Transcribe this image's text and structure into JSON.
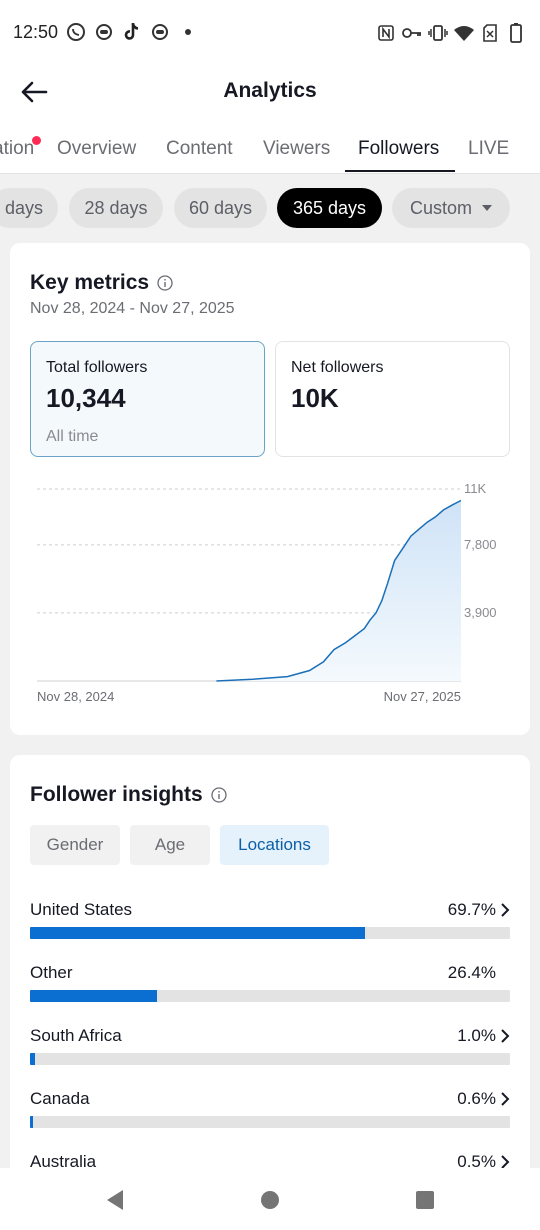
{
  "status_bar": {
    "time": "12:50"
  },
  "header": {
    "title": "Analytics"
  },
  "tabs": [
    {
      "label": "ation",
      "active": false
    },
    {
      "label": "Overview",
      "active": false
    },
    {
      "label": "Content",
      "active": false
    },
    {
      "label": "Viewers",
      "active": false
    },
    {
      "label": "Followers",
      "active": true
    },
    {
      "label": "LIVE",
      "active": false
    }
  ],
  "date_chips": [
    {
      "label": "days",
      "active": false
    },
    {
      "label": "28 days",
      "active": false
    },
    {
      "label": "60 days",
      "active": false
    },
    {
      "label": "365 days",
      "active": true
    },
    {
      "label": "Custom",
      "active": false
    }
  ],
  "key_metrics": {
    "title": "Key metrics",
    "date_range": "Nov 28, 2024 - Nov 27, 2025",
    "total": {
      "label": "Total followers",
      "value": "10,344",
      "sub": "All time"
    },
    "net": {
      "label": "Net followers",
      "value": "10K"
    }
  },
  "chart_data": {
    "type": "area",
    "title": "",
    "xlabel": "",
    "ylabel": "",
    "x_tick_labels": [
      "Nov 28, 2024",
      "Nov 27, 2025"
    ],
    "y_tick_labels": [
      "3,900",
      "7,800",
      "11K"
    ],
    "y_ticks": [
      3900,
      7800,
      11000
    ],
    "ylim": [
      0,
      11000
    ],
    "grid": true,
    "series": [
      {
        "x": [
          "2025-05-01",
          "2025-06-01",
          "2025-07-01",
          "2025-07-20",
          "2025-08-01",
          "2025-08-10",
          "2025-08-20",
          "2025-08-28",
          "2025-09-05",
          "2025-09-10",
          "2025-09-15",
          "2025-09-20",
          "2025-09-25",
          "2025-10-01",
          "2025-10-08",
          "2025-10-15",
          "2025-10-22",
          "2025-10-29",
          "2025-11-05",
          "2025-11-12",
          "2025-11-20",
          "2025-11-27"
        ],
        "y": [
          0,
          100,
          250,
          600,
          1100,
          1800,
          2200,
          2600,
          3000,
          3500,
          3900,
          4600,
          5600,
          6900,
          7600,
          8300,
          8700,
          9100,
          9400,
          9800,
          10100,
          10344
        ]
      }
    ]
  },
  "insights": {
    "title": "Follower insights",
    "segments": [
      {
        "label": "Gender",
        "active": false
      },
      {
        "label": "Age",
        "active": false
      },
      {
        "label": "Locations",
        "active": true
      }
    ],
    "locations": [
      {
        "name": "United States",
        "pct_label": "69.7%",
        "pct": 69.7,
        "chevron": true
      },
      {
        "name": "Other",
        "pct_label": "26.4%",
        "pct": 26.4,
        "chevron": false
      },
      {
        "name": "South Africa",
        "pct_label": "1.0%",
        "pct": 1.0,
        "chevron": true
      },
      {
        "name": "Canada",
        "pct_label": "0.6%",
        "pct": 0.6,
        "chevron": true
      },
      {
        "name": "Australia",
        "pct_label": "0.5%",
        "pct": 0.5,
        "chevron": true
      }
    ]
  }
}
